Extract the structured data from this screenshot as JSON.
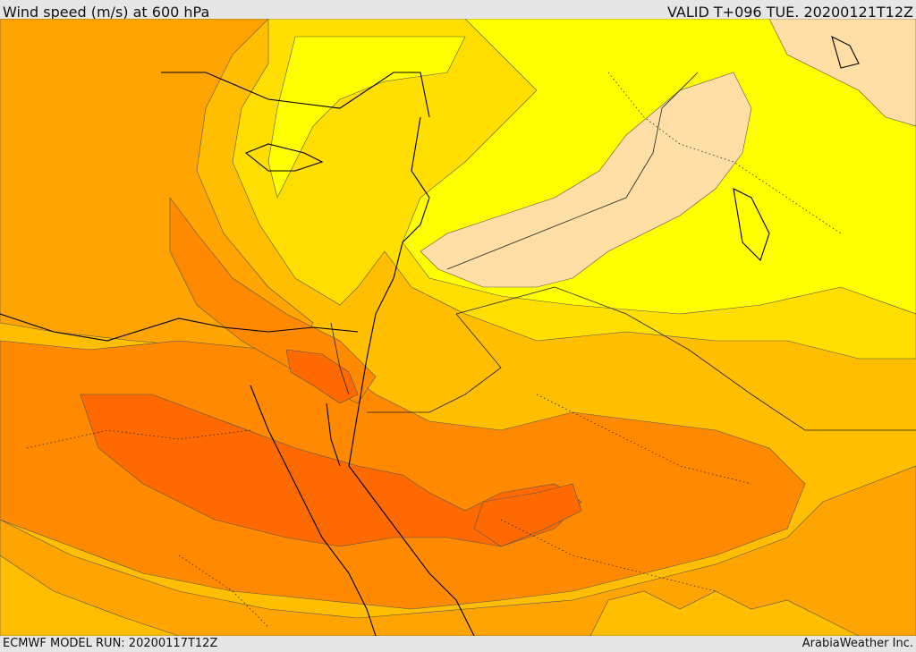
{
  "header": {
    "title": "Wind speed (m/s) at 600 hPa",
    "valid_time": "VALID T+096 TUE. 20200121T12Z"
  },
  "footer": {
    "model_run": "ECMWF MODEL RUN: 20200117T12Z",
    "credit": "ArabiaWeather Inc."
  },
  "colors": {
    "palest": "#ffdfa6",
    "yellow": "#ffff00",
    "gold": "#ffde00",
    "amber": "#ffbe00",
    "orange_light": "#ffa400",
    "orange": "#ff8a00",
    "orange_dark": "#ff6a00",
    "orange_deep": "#ff5a00",
    "coast": "#000000",
    "contour": "#555555"
  }
}
